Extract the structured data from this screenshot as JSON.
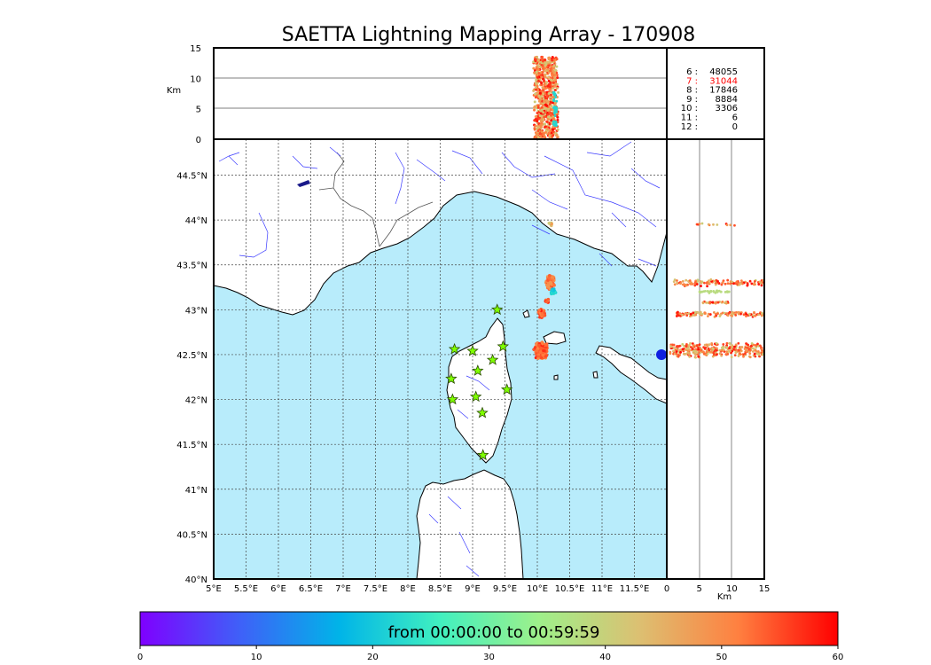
{
  "chart_data": {
    "type": "scatter",
    "title": "SAETTA Lightning Mapping Array - 170908",
    "colors": {
      "sea": "#b8ecfb",
      "land": "#ffffff",
      "river": "#3b3bff",
      "coast": "#000000",
      "border": "#555555",
      "star_fill": "#7fff00",
      "count_highlight": "#ff0000"
    },
    "map": {
      "lon_ticks": [
        "5°E",
        "5.5°E",
        "6°E",
        "6.5°E",
        "7°E",
        "7.5°E",
        "8°E",
        "8.5°E",
        "9°E",
        "9.5°E",
        "10°E",
        "10.5°E",
        "11°E",
        "11.5°E"
      ],
      "lat_ticks": [
        "40°N",
        "40.5°N",
        "41°N",
        "41.5°N",
        "42°N",
        "42.5°N",
        "43°N",
        "43.5°N",
        "44°N",
        "44.5°N"
      ],
      "lon_range": [
        5,
        12
      ],
      "lat_range": [
        40,
        44.9
      ],
      "stations": [
        {
          "lon": 9.38,
          "lat": 43.0
        },
        {
          "lon": 8.72,
          "lat": 42.56
        },
        {
          "lon": 9.0,
          "lat": 42.54
        },
        {
          "lon": 9.47,
          "lat": 42.59
        },
        {
          "lon": 9.31,
          "lat": 42.44
        },
        {
          "lon": 9.08,
          "lat": 42.32
        },
        {
          "lon": 8.67,
          "lat": 42.23
        },
        {
          "lon": 9.53,
          "lat": 42.11
        },
        {
          "lon": 8.69,
          "lat": 42.0
        },
        {
          "lon": 9.05,
          "lat": 42.03
        },
        {
          "lon": 9.15,
          "lat": 41.85
        },
        {
          "lon": 9.16,
          "lat": 41.38
        }
      ],
      "lightning_clusters": [
        {
          "lon": 10.05,
          "lat": 42.55,
          "minute": 58
        },
        {
          "lon": 10.2,
          "lat": 43.3,
          "minute": 55
        },
        {
          "lon": 10.07,
          "lat": 42.96,
          "minute": 58
        },
        {
          "lon": 10.25,
          "lat": 43.2,
          "minute": 25
        },
        {
          "lon": 10.15,
          "lat": 43.1,
          "minute": 60
        },
        {
          "lon": 10.2,
          "lat": 43.95,
          "minute": 48
        }
      ]
    },
    "altitude_panel": {
      "ylabel": "Km",
      "y_ticks": [
        "0",
        "5",
        "10",
        "15"
      ],
      "ylim": [
        0,
        15
      ],
      "lon_range": [
        9.9,
        10.3
      ],
      "alt_range": [
        0,
        13.5
      ]
    },
    "lat_altitude_panel": {
      "xlabel": "Km",
      "x_ticks": [
        "0",
        "5",
        "10",
        "15"
      ],
      "xlim": [
        0,
        15
      ],
      "bands": [
        {
          "lat": 43.95,
          "x_range": [
            3.5,
            11
          ]
        },
        {
          "lat": 43.3,
          "x_range": [
            1,
            15
          ]
        },
        {
          "lat": 43.2,
          "x_range": [
            5,
            10
          ]
        },
        {
          "lat": 43.08,
          "x_range": [
            5.5,
            9.5
          ]
        },
        {
          "lat": 42.95,
          "x_range": [
            1.5,
            15
          ]
        },
        {
          "lat": 42.55,
          "x_range": [
            0.5,
            15
          ]
        }
      ]
    },
    "station_counts": [
      {
        "label": "6  :",
        "value": "48055",
        "highlight": false
      },
      {
        "label": "7  :",
        "value": "31044",
        "highlight": true
      },
      {
        "label": "8  :",
        "value": "17846",
        "highlight": false
      },
      {
        "label": "9  :",
        "value": "8884",
        "highlight": false
      },
      {
        "label": "10  :",
        "value": "3306",
        "highlight": false
      },
      {
        "label": "11  :",
        "value": "6",
        "highlight": false
      },
      {
        "label": "12  :",
        "value": "0",
        "highlight": false
      }
    ],
    "colorbar": {
      "label": "from 00:00:00 to 00:59:59",
      "ticks": [
        "0",
        "10",
        "20",
        "30",
        "40",
        "50",
        "60"
      ],
      "range": [
        0,
        60
      ],
      "gradient": [
        "#7f00ff",
        "#3f60f8",
        "#00b4e8",
        "#40f0c0",
        "#9ef08a",
        "#dcc072",
        "#ff8040",
        "#ff0000"
      ]
    }
  }
}
